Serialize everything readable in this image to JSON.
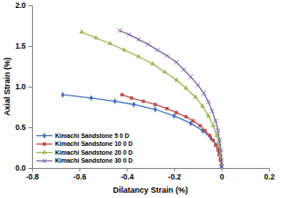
{
  "chart_data": {
    "type": "line",
    "x_label": "Dilatancy Strain (%)",
    "y_label": "Axial Strain (%)",
    "xlim": [
      -0.8,
      0.2
    ],
    "xticks": [
      -0.8,
      -0.6,
      -0.4,
      -0.2,
      0,
      0.2
    ],
    "ylim": [
      0,
      2
    ],
    "yticks": [
      {
        "value": 0,
        "label": "0.0"
      },
      {
        "value": 0.5,
        "label": "0.5"
      },
      {
        "value": 1,
        "label": "1.0"
      },
      {
        "value": 1.5,
        "label": "1.5"
      },
      {
        "value": 2,
        "label": "2.0"
      }
    ],
    "grid": false,
    "legend": "lower left",
    "series": [
      {
        "name": "Kimachi Sandstone 5 0 D",
        "color": "#4472c4",
        "marker": "diamond",
        "x": [
          -0.67,
          -0.55,
          -0.45,
          -0.37,
          -0.28,
          -0.2,
          -0.13,
          -0.08,
          -0.045,
          -0.02,
          -0.01,
          -0.003,
          0
        ],
        "values": [
          0.9,
          0.86,
          0.82,
          0.78,
          0.72,
          0.64,
          0.55,
          0.46,
          0.37,
          0.28,
          0.19,
          0.1,
          0.02
        ]
      },
      {
        "name": "Kimachi Sandstone 10 0 D",
        "color": "#c0504d",
        "marker": "square",
        "x": [
          -0.42,
          -0.38,
          -0.33,
          -0.28,
          -0.23,
          -0.19,
          -0.15,
          -0.12,
          -0.09,
          -0.07,
          -0.05,
          -0.035,
          -0.025,
          -0.015,
          -0.01,
          -0.005,
          0
        ],
        "values": [
          0.9,
          0.86,
          0.82,
          0.78,
          0.73,
          0.68,
          0.63,
          0.58,
          0.52,
          0.46,
          0.4,
          0.34,
          0.28,
          0.22,
          0.16,
          0.1,
          0.04
        ]
      },
      {
        "name": "Kimachi Sandstone 20 0 D",
        "color": "#9bbb59",
        "marker": "triangle",
        "x": [
          -0.59,
          -0.53,
          -0.47,
          -0.41,
          -0.35,
          -0.29,
          -0.24,
          -0.19,
          -0.15,
          -0.11,
          -0.08,
          -0.055,
          -0.035,
          -0.02,
          -0.01,
          -0.004,
          0
        ],
        "values": [
          1.67,
          1.6,
          1.53,
          1.45,
          1.37,
          1.28,
          1.18,
          1.08,
          0.98,
          0.87,
          0.76,
          0.64,
          0.52,
          0.4,
          0.28,
          0.16,
          0.05
        ]
      },
      {
        "name": "Kimachi Sandstone 30 0 D",
        "color": "#8064a2",
        "marker": "x",
        "x": [
          -0.43,
          -0.39,
          -0.35,
          -0.31,
          -0.27,
          -0.23,
          -0.19,
          -0.16,
          -0.13,
          -0.1,
          -0.075,
          -0.055,
          -0.04,
          -0.025,
          -0.015,
          -0.008,
          -0.003,
          0,
          0
        ],
        "values": [
          1.69,
          1.64,
          1.58,
          1.52,
          1.45,
          1.38,
          1.3,
          1.21,
          1.12,
          1.02,
          0.92,
          0.81,
          0.7,
          0.58,
          0.46,
          0.34,
          0.22,
          0.1,
          0.02
        ]
      }
    ]
  }
}
